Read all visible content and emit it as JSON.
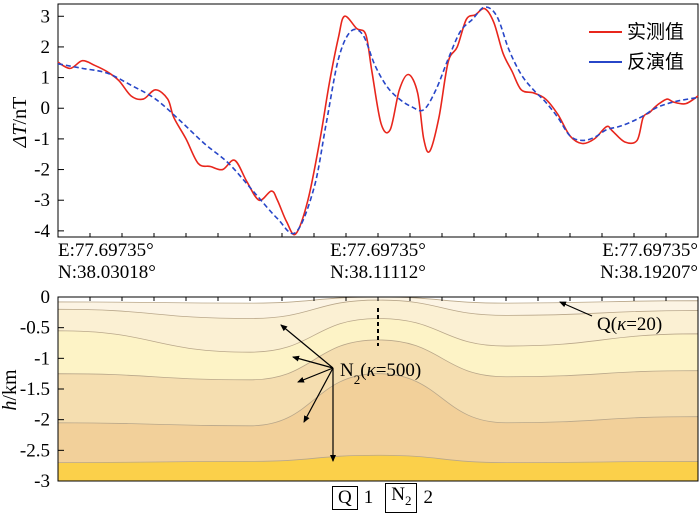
{
  "chart_data": [
    {
      "type": "line",
      "ylabel": "ΔT/nT",
      "ylabel_main": "ΔT",
      "ylabel_unit": "/nT",
      "ylim": [
        -4.2,
        3.4
      ],
      "yticks": [
        "3",
        "2",
        "1",
        "0",
        "-1",
        "-2",
        "-3",
        "-4"
      ],
      "ytick_values": [
        3,
        2,
        1,
        0,
        -1,
        -2,
        -3,
        -4
      ],
      "grid": false,
      "legend_position": "top-right",
      "x_locations": [
        {
          "e": "E:77.69735°",
          "n": "N:38.03018°"
        },
        {
          "e": "E:77.69735°",
          "n": "N:38.11112°"
        },
        {
          "e": "E:77.69735°",
          "n": "N:38.19207°"
        }
      ],
      "series": [
        {
          "name": "实测值",
          "color": "#e8261c",
          "style": "solid",
          "points": [
            [
              0,
              1.5
            ],
            [
              0.02,
              1.3
            ],
            [
              0.04,
              1.55
            ],
            [
              0.06,
              1.4
            ],
            [
              0.08,
              1.2
            ],
            [
              0.1,
              0.9
            ],
            [
              0.12,
              0.4
            ],
            [
              0.14,
              0.3
            ],
            [
              0.16,
              0.6
            ],
            [
              0.18,
              0.3
            ],
            [
              0.19,
              -0.3
            ],
            [
              0.21,
              -1.0
            ],
            [
              0.23,
              -1.8
            ],
            [
              0.25,
              -1.9
            ],
            [
              0.27,
              -2.0
            ],
            [
              0.29,
              -1.7
            ],
            [
              0.31,
              -2.4
            ],
            [
              0.33,
              -3.0
            ],
            [
              0.35,
              -2.7
            ],
            [
              0.36,
              -3.0
            ],
            [
              0.375,
              -3.7
            ],
            [
              0.39,
              -4.1
            ],
            [
              0.41,
              -3.0
            ],
            [
              0.43,
              -1.0
            ],
            [
              0.445,
              0.8
            ],
            [
              0.46,
              2.3
            ],
            [
              0.47,
              3.0
            ],
            [
              0.49,
              2.6
            ],
            [
              0.505,
              2.4
            ],
            [
              0.515,
              1.2
            ],
            [
              0.53,
              -0.5
            ],
            [
              0.545,
              -0.7
            ],
            [
              0.56,
              0.6
            ],
            [
              0.575,
              1.1
            ],
            [
              0.59,
              0.5
            ],
            [
              0.6,
              -1.0
            ],
            [
              0.61,
              -1.4
            ],
            [
              0.625,
              -0.3
            ],
            [
              0.64,
              1.5
            ],
            [
              0.655,
              2.0
            ],
            [
              0.67,
              2.9
            ],
            [
              0.685,
              3.05
            ],
            [
              0.7,
              3.25
            ],
            [
              0.715,
              2.8
            ],
            [
              0.73,
              1.8
            ],
            [
              0.745,
              1.2
            ],
            [
              0.76,
              0.6
            ],
            [
              0.78,
              0.5
            ],
            [
              0.8,
              0.3
            ],
            [
              0.82,
              -0.2
            ],
            [
              0.84,
              -0.9
            ],
            [
              0.86,
              -1.15
            ],
            [
              0.88,
              -1.0
            ],
            [
              0.9,
              -0.6
            ],
            [
              0.91,
              -0.75
            ],
            [
              0.93,
              -1.1
            ],
            [
              0.95,
              -1.05
            ],
            [
              0.96,
              -0.3
            ],
            [
              0.97,
              -0.15
            ],
            [
              0.98,
              0.05
            ],
            [
              0.99,
              0.2
            ],
            [
              1.0,
              0.3
            ],
            [
              1.01,
              0.2
            ],
            [
              1.03,
              0.15
            ],
            [
              1.05,
              0.4
            ]
          ]
        },
        {
          "name": "反演值",
          "color": "#2746c8",
          "style": "dashed",
          "points": [
            [
              0,
              1.45
            ],
            [
              0.04,
              1.3
            ],
            [
              0.08,
              1.15
            ],
            [
              0.12,
              0.75
            ],
            [
              0.16,
              0.3
            ],
            [
              0.2,
              -0.4
            ],
            [
              0.24,
              -1.15
            ],
            [
              0.28,
              -1.8
            ],
            [
              0.32,
              -2.7
            ],
            [
              0.36,
              -3.6
            ],
            [
              0.39,
              -4.05
            ],
            [
              0.42,
              -2.6
            ],
            [
              0.44,
              -0.5
            ],
            [
              0.46,
              1.6
            ],
            [
              0.48,
              2.5
            ],
            [
              0.5,
              2.4
            ],
            [
              0.52,
              1.4
            ],
            [
              0.54,
              0.7
            ],
            [
              0.56,
              0.3
            ],
            [
              0.58,
              0.05
            ],
            [
              0.6,
              -0.05
            ],
            [
              0.62,
              0.6
            ],
            [
              0.64,
              1.6
            ],
            [
              0.66,
              2.5
            ],
            [
              0.68,
              2.9
            ],
            [
              0.7,
              3.3
            ],
            [
              0.72,
              3.0
            ],
            [
              0.74,
              1.9
            ],
            [
              0.76,
              1.1
            ],
            [
              0.78,
              0.6
            ],
            [
              0.8,
              0.2
            ],
            [
              0.82,
              -0.3
            ],
            [
              0.84,
              -0.9
            ],
            [
              0.86,
              -1.05
            ],
            [
              0.88,
              -0.95
            ],
            [
              0.9,
              -0.7
            ],
            [
              0.92,
              -0.6
            ],
            [
              0.94,
              -0.45
            ],
            [
              0.96,
              -0.25
            ],
            [
              0.98,
              0.0
            ],
            [
              1.0,
              0.15
            ],
            [
              1.02,
              0.25
            ],
            [
              1.05,
              0.35
            ]
          ]
        }
      ]
    },
    {
      "type": "area",
      "ylabel": "h/km",
      "ylabel_main": "h",
      "ylabel_unit": "/km",
      "ylim": [
        -3,
        0
      ],
      "yticks": [
        "0",
        "-0.5",
        "-1",
        "-1.5",
        "-2",
        "-2.5",
        "-3"
      ],
      "ytick_values": [
        0,
        -0.5,
        -1,
        -1.5,
        -2,
        -2.5,
        -3
      ],
      "layers": [
        {
          "color": "#fcf4e4",
          "top": [
            [
              0,
              -0.08
            ],
            [
              0.3,
              -0.1
            ],
            [
              0.5,
              0
            ],
            [
              0.7,
              -0.1
            ],
            [
              1,
              -0.06
            ]
          ]
        },
        {
          "color": "#fbf0d3",
          "top": [
            [
              0,
              -0.2
            ],
            [
              0.3,
              -0.35
            ],
            [
              0.5,
              -0.05
            ],
            [
              0.7,
              -0.3
            ],
            [
              1,
              -0.22
            ]
          ]
        },
        {
          "color": "#fdf3c6",
          "top": [
            [
              0,
              -0.55
            ],
            [
              0.3,
              -0.9
            ],
            [
              0.5,
              -0.35
            ],
            [
              0.7,
              -0.8
            ],
            [
              1,
              -0.6
            ]
          ]
        },
        {
          "color": "#f5deb0",
          "top": [
            [
              0,
              -1.25
            ],
            [
              0.3,
              -1.35
            ],
            [
              0.5,
              -0.7
            ],
            [
              0.7,
              -1.3
            ],
            [
              1,
              -1.2
            ]
          ]
        },
        {
          "color": "#f2d09a",
          "top": [
            [
              0,
              -2.05
            ],
            [
              0.3,
              -2.1
            ],
            [
              0.5,
              -1.25
            ],
            [
              0.7,
              -2.05
            ],
            [
              1,
              -1.95
            ]
          ]
        },
        {
          "color": "#fbd04a",
          "top": [
            [
              0,
              -2.7
            ],
            [
              0.3,
              -2.68
            ],
            [
              0.5,
              -2.58
            ],
            [
              0.7,
              -2.7
            ],
            [
              1,
              -2.68
            ]
          ]
        }
      ],
      "annotations": [
        {
          "label": "Q(κ=20)",
          "main": "Q(",
          "kappa": "κ",
          "rest": "=20)"
        },
        {
          "label": "N2(κ=500)",
          "main": "N",
          "sub": "2",
          "mid": "(",
          "kappa": "κ",
          "rest": "=500)"
        }
      ]
    }
  ],
  "legend": {
    "items": [
      {
        "box": "Q",
        "sub": "",
        "num": "1"
      },
      {
        "box": "N",
        "sub": "2",
        "num": "2"
      }
    ]
  }
}
